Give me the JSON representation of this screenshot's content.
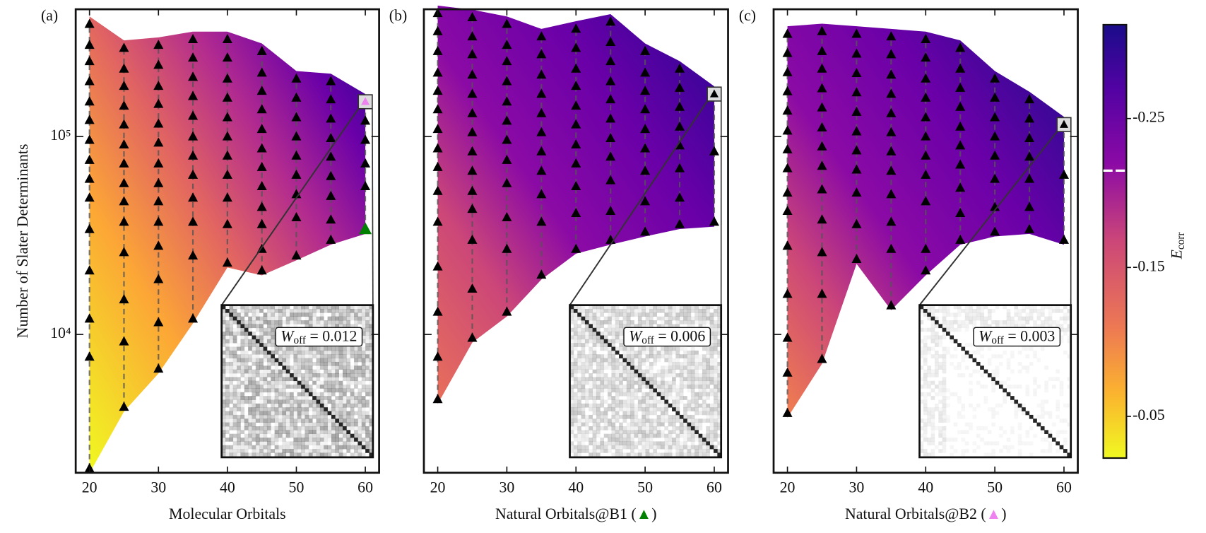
{
  "chart_data": [
    {
      "type": "contour",
      "panel_label": "(a)",
      "xlabel": "Molecular Orbitals",
      "ylabel": "Number of Slater Determinants",
      "xlim": [
        18,
        62
      ],
      "xticks": [
        20,
        30,
        40,
        50,
        60
      ],
      "ylim": [
        2000,
        440000
      ],
      "log_y": true,
      "yticks": [
        {
          "value": 10000,
          "label": "10⁴"
        },
        {
          "value": 100000,
          "label": "10⁵"
        }
      ],
      "marker_color": "#000000",
      "points": [
        {
          "x": 20,
          "y": [
            370000,
            290000,
            240000,
            190000,
            150000,
            121000,
            96000,
            76000,
            61000,
            49000,
            34000,
            21000,
            12000,
            7700,
            2100
          ]
        },
        {
          "x": 25,
          "y": [
            280000,
            220000,
            180000,
            143000,
            115000,
            91000,
            73000,
            58000,
            47000,
            37000,
            26000,
            15000,
            9200,
            4300
          ]
        },
        {
          "x": 30,
          "y": [
            290000,
            230000,
            180000,
            146000,
            116000,
            93000,
            73000,
            58000,
            47000,
            37000,
            28000,
            19000,
            11500,
            6700
          ]
        },
        {
          "x": 35,
          "y": [
            310000,
            250000,
            200000,
            160000,
            127000,
            100000,
            80000,
            64000,
            49000,
            37000,
            25000,
            12000
          ]
        },
        {
          "x": 40,
          "y": [
            310000,
            250000,
            196000,
            157000,
            125000,
            100000,
            80000,
            64000,
            49000,
            36000,
            23000
          ]
        },
        {
          "x": 45,
          "y": [
            270000,
            210000,
            170000,
            137000,
            109000,
            87000,
            70000,
            56000,
            44000,
            36000,
            27000,
            21000
          ]
        },
        {
          "x": 50,
          "y": [
            196000,
            157000,
            125000,
            100000,
            80000,
            64000,
            51000,
            39000,
            25000
          ]
        },
        {
          "x": 55,
          "y": [
            190000,
            154000,
            123000,
            98000,
            79000,
            63000,
            50000,
            38000,
            30000
          ]
        },
        {
          "x": 60,
          "y": [
            120000,
            96000,
            73000,
            56000
          ]
        }
      ],
      "special_markers": [
        {
          "x": 60,
          "y": 150000,
          "color": "#ee82ee",
          "boxed": true
        },
        {
          "x": 60,
          "y": 34000,
          "color": "#008000",
          "boxed": false
        }
      ],
      "inset": {
        "symbol": "W",
        "subscript": "off",
        "relation": "=",
        "value": 0.012
      }
    },
    {
      "type": "contour",
      "panel_label": "(b)",
      "xlabel": "Natural Orbitals@B1 (▲)",
      "xlabel_marker_color": "#008000",
      "xlim": [
        18,
        62
      ],
      "xticks": [
        20,
        30,
        40,
        50,
        60
      ],
      "ylim": [
        2000,
        440000
      ],
      "log_y": true,
      "yticks": [
        10000,
        100000
      ],
      "marker_color": "#000000",
      "points": [
        {
          "x": 20,
          "y": [
            420000,
            340000,
            270000,
            210000,
            170000,
            137000,
            109000,
            87000,
            70000,
            53000,
            37000,
            22000,
            13000,
            7700,
            4700
          ]
        },
        {
          "x": 25,
          "y": [
            400000,
            320000,
            260000,
            205000,
            164000,
            131000,
            105000,
            84000,
            67000,
            53000,
            43000,
            30000,
            17000,
            9600
          ]
        },
        {
          "x": 30,
          "y": [
            370000,
            290000,
            240000,
            190000,
            150000,
            120000,
            96000,
            76000,
            58000,
            39000,
            27000,
            13000
          ]
        },
        {
          "x": 35,
          "y": [
            320000,
            260000,
            205000,
            164000,
            131000,
            105000,
            84000,
            67000,
            51000,
            37000,
            20000
          ]
        },
        {
          "x": 40,
          "y": [
            350000,
            280000,
            220000,
            180000,
            143000,
            115000,
            91000,
            73000,
            56000,
            41000,
            27000
          ]
        },
        {
          "x": 45,
          "y": [
            380000,
            300000,
            240000,
            190000,
            154000,
            123000,
            98000,
            79000,
            60000,
            42000,
            30000
          ]
        },
        {
          "x": 50,
          "y": [
            270000,
            210000,
            170000,
            137000,
            109000,
            87000,
            67000,
            47000,
            33000
          ]
        },
        {
          "x": 55,
          "y": [
            220000,
            176000,
            141000,
            112000,
            90000,
            69000,
            49000,
            36000
          ]
        },
        {
          "x": 60,
          "y": [
            84000,
            37000
          ]
        }
      ],
      "special_markers": [
        {
          "x": 60,
          "y": 164000,
          "color": "#000000",
          "boxed": true
        }
      ],
      "inset": {
        "symbol": "W",
        "subscript": "off",
        "relation": "=",
        "value": 0.006
      }
    },
    {
      "type": "contour",
      "panel_label": "(c)",
      "xlabel": "Natural Orbitals@B2 (▲)",
      "xlabel_marker_color": "#ee82ee",
      "xlim": [
        18,
        62
      ],
      "xticks": [
        20,
        30,
        40,
        50,
        60
      ],
      "ylim": [
        2000,
        440000
      ],
      "log_y": true,
      "yticks": [
        10000,
        100000
      ],
      "marker_color": "#000000",
      "points": [
        {
          "x": 20,
          "y": [
            330000,
            264000,
            211000,
            169000,
            135000,
            107000,
            86000,
            69000,
            52000,
            42000,
            28000,
            16000,
            9600,
            6400,
            4000
          ]
        },
        {
          "x": 25,
          "y": [
            340000,
            270000,
            220000,
            175000,
            140000,
            111000,
            89000,
            71000,
            54000,
            38000,
            26000,
            16000,
            7500
          ]
        },
        {
          "x": 30,
          "y": [
            330000,
            262000,
            209000,
            167000,
            133000,
            106000,
            85000,
            68000,
            52000,
            36000,
            24000
          ]
        },
        {
          "x": 35,
          "y": [
            320000,
            260000,
            205000,
            164000,
            131000,
            105000,
            84000,
            67000,
            51000,
            37000,
            27000,
            14000
          ]
        },
        {
          "x": 40,
          "y": [
            310000,
            250000,
            196000,
            157000,
            125000,
            100000,
            80000,
            64000,
            47000,
            27000,
            21000
          ]
        },
        {
          "x": 45,
          "y": [
            280000,
            220000,
            176000,
            141000,
            112000,
            90000,
            72000,
            55000,
            41000,
            30000
          ]
        },
        {
          "x": 50,
          "y": [
            196000,
            157000,
            125000,
            100000,
            80000,
            61000,
            44000,
            33000
          ]
        },
        {
          "x": 55,
          "y": [
            154000,
            123000,
            98000,
            79000,
            61000,
            44000,
            34000
          ]
        },
        {
          "x": 60,
          "y": [
            64000,
            30000
          ]
        }
      ],
      "special_markers": [
        {
          "x": 60,
          "y": 115000,
          "color": "#000000",
          "boxed": true
        }
      ],
      "inset": {
        "symbol": "W",
        "subscript": "off",
        "relation": "=",
        "value": 0.003
      }
    }
  ],
  "colorbar": {
    "label": "E",
    "label_subscript": "corr",
    "lim": [
      -0.313,
      -0.022
    ],
    "ticks": [
      -0.25,
      -0.15,
      -0.05
    ],
    "highlight": -0.215
  }
}
